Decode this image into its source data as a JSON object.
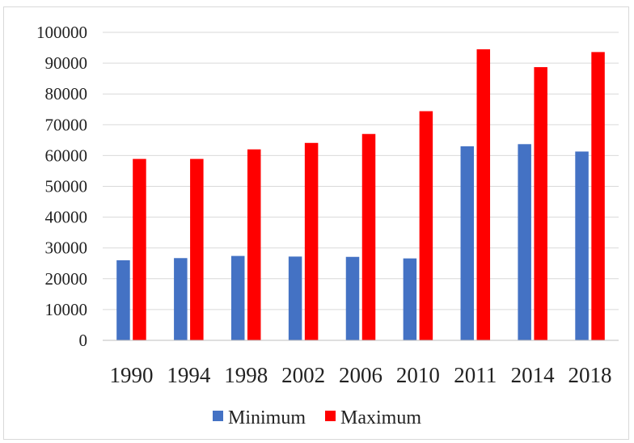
{
  "chart_data": {
    "type": "bar",
    "title": "",
    "xlabel": "",
    "ylabel": "",
    "categories": [
      "1990",
      "1994",
      "1998",
      "2002",
      "2006",
      "2010",
      "2011",
      "2014",
      "2018"
    ],
    "series": [
      {
        "name": "Minimum",
        "color": "#4472C4",
        "values": [
          26000,
          26700,
          27400,
          27200,
          27100,
          26600,
          63000,
          63700,
          61300
        ]
      },
      {
        "name": "Maximum",
        "color": "#FF0000",
        "values": [
          58900,
          58900,
          62000,
          64100,
          67000,
          74400,
          94500,
          88700,
          93600
        ]
      }
    ],
    "ylim": [
      0,
      100000
    ],
    "yticks": [
      "0",
      "10000",
      "20000",
      "30000",
      "40000",
      "50000",
      "60000",
      "70000",
      "80000",
      "90000",
      "100000"
    ],
    "grid": true,
    "legend_position": "bottom"
  }
}
